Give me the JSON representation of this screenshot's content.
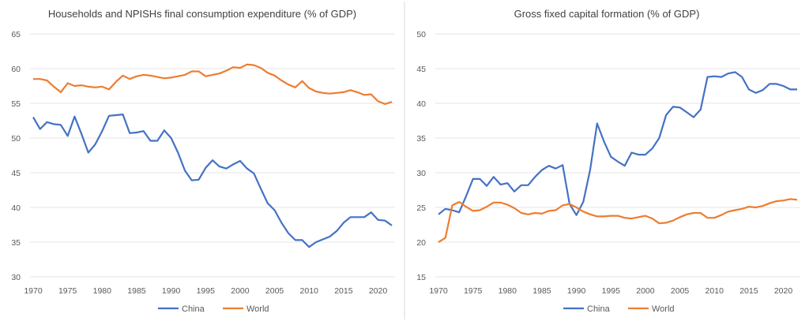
{
  "colors": {
    "China": "#4472C4",
    "World": "#ED7D31",
    "grid": "#e6e6e6"
  },
  "chart_data": [
    {
      "type": "line",
      "title": "Households and NPISHs final consumption expenditure (% of GDP)",
      "ylim": [
        30,
        65
      ],
      "yticks": [
        30,
        35,
        40,
        45,
        50,
        55,
        60,
        65
      ],
      "xlim": [
        1970,
        2022
      ],
      "xticks": [
        1970,
        1975,
        1980,
        1985,
        1990,
        1995,
        2000,
        2005,
        2010,
        2015,
        2020
      ],
      "grid": "horizontal",
      "legend": "bottom",
      "series": [
        {
          "name": "China",
          "values": [
            53.0,
            51.3,
            52.3,
            52.0,
            51.9,
            50.3,
            53.1,
            50.6,
            47.9,
            49.1,
            51.0,
            53.2,
            53.3,
            53.4,
            50.7,
            50.8,
            51.0,
            49.6,
            49.6,
            51.1,
            50.0,
            47.9,
            45.3,
            43.9,
            44.0,
            45.7,
            46.8,
            45.9,
            45.6,
            46.2,
            46.7,
            45.6,
            44.9,
            42.7,
            40.6,
            39.6,
            37.8,
            36.3,
            35.3,
            35.3,
            34.3,
            35.0,
            35.4,
            35.8,
            36.6,
            37.8,
            38.6,
            38.6,
            38.6,
            39.3,
            38.2,
            38.1,
            37.4
          ]
        },
        {
          "name": "World",
          "values": [
            58.5,
            58.5,
            58.3,
            57.4,
            56.6,
            57.9,
            57.5,
            57.6,
            57.4,
            57.3,
            57.4,
            57.0,
            58.1,
            59.0,
            58.5,
            58.9,
            59.1,
            59.0,
            58.8,
            58.6,
            58.7,
            58.9,
            59.1,
            59.6,
            59.6,
            58.9,
            59.1,
            59.3,
            59.7,
            60.2,
            60.1,
            60.6,
            60.5,
            60.1,
            59.4,
            59.0,
            58.3,
            57.7,
            57.3,
            58.2,
            57.2,
            56.7,
            56.5,
            56.4,
            56.5,
            56.6,
            56.9,
            56.6,
            56.2,
            56.3,
            55.3,
            54.9,
            55.2
          ]
        }
      ]
    },
    {
      "type": "line",
      "title": "Gross fixed capital formation (% of GDP)",
      "ylim": [
        15,
        50
      ],
      "yticks": [
        15,
        20,
        25,
        30,
        35,
        40,
        45,
        50
      ],
      "xlim": [
        1970,
        2022
      ],
      "xticks": [
        1970,
        1975,
        1980,
        1985,
        1990,
        1995,
        2000,
        2005,
        2010,
        2015,
        2020
      ],
      "grid": "horizontal",
      "legend": "bottom",
      "series": [
        {
          "name": "China",
          "values": [
            24.0,
            24.8,
            24.6,
            24.3,
            26.6,
            29.1,
            29.1,
            28.1,
            29.4,
            28.3,
            28.5,
            27.3,
            28.2,
            28.2,
            29.4,
            30.4,
            31.0,
            30.6,
            31.1,
            25.5,
            23.9,
            25.8,
            30.5,
            37.1,
            34.5,
            32.3,
            31.6,
            31.0,
            32.9,
            32.6,
            32.6,
            33.5,
            35.0,
            38.3,
            39.5,
            39.4,
            38.7,
            38.0,
            39.1,
            43.8,
            43.9,
            43.8,
            44.3,
            44.5,
            43.8,
            42.0,
            41.5,
            41.9,
            42.8,
            42.8,
            42.5,
            42.0,
            42.0
          ]
        },
        {
          "name": "World",
          "values": [
            20.0,
            20.6,
            25.3,
            25.8,
            25.1,
            24.5,
            24.6,
            25.1,
            25.7,
            25.7,
            25.4,
            24.9,
            24.2,
            24.0,
            24.2,
            24.1,
            24.5,
            24.6,
            25.3,
            25.5,
            25.0,
            24.4,
            24.0,
            23.7,
            23.7,
            23.8,
            23.8,
            23.5,
            23.4,
            23.6,
            23.8,
            23.4,
            22.7,
            22.8,
            23.1,
            23.6,
            24.0,
            24.2,
            24.2,
            23.5,
            23.5,
            23.9,
            24.4,
            24.6,
            24.8,
            25.1,
            25.0,
            25.2,
            25.6,
            25.9,
            26.0,
            26.2,
            26.1
          ]
        }
      ]
    }
  ]
}
